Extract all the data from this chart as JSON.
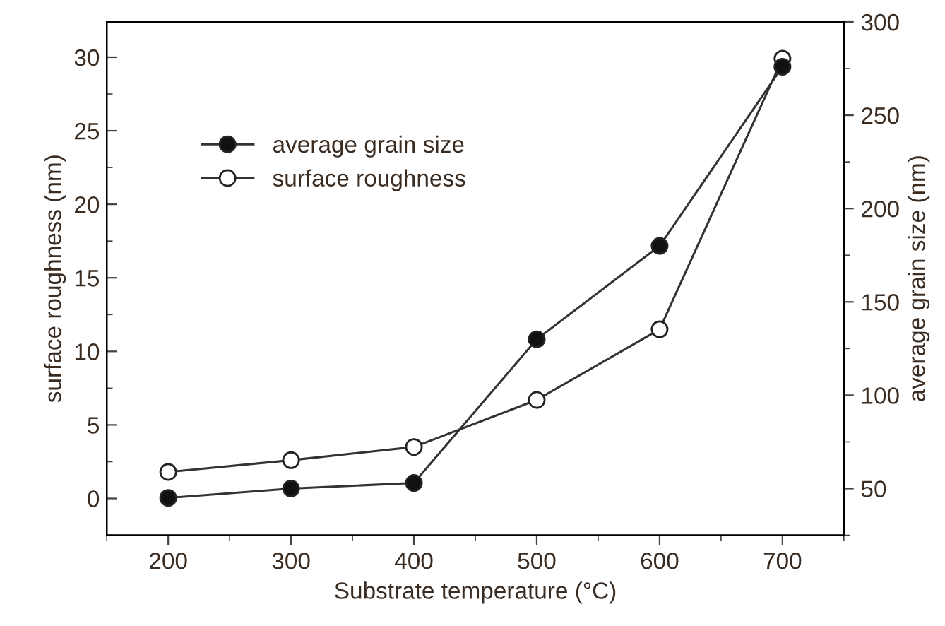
{
  "chart_data": {
    "type": "line",
    "xlabel": "Substrate temperature (°C)",
    "ylabel": "surface roughness (nm)",
    "y2label": "average grain size (nm)",
    "x": [
      200,
      300,
      400,
      500,
      600,
      700
    ],
    "series": [
      {
        "name": "average grain size",
        "color": "#111111",
        "axis": "y2",
        "values": [
          45,
          50,
          53,
          130,
          180,
          276
        ]
      },
      {
        "name": "surface roughness",
        "color": "#ffffff",
        "values": [
          1.8,
          2.6,
          3.5,
          6.7,
          11.5,
          29.9
        ]
      }
    ],
    "xlim": [
      150,
      750
    ],
    "xticks": [
      200,
      300,
      400,
      500,
      600,
      700
    ],
    "ylim": [
      -2.5,
      32.4
    ],
    "yticks": [
      0,
      5,
      10,
      15,
      20,
      25,
      30
    ],
    "y2lim": [
      25,
      300
    ],
    "y2ticks": [
      50,
      100,
      150,
      200,
      250,
      300
    ],
    "marker": "circle",
    "line_style": "solid",
    "grid": false,
    "legend": "top left"
  }
}
